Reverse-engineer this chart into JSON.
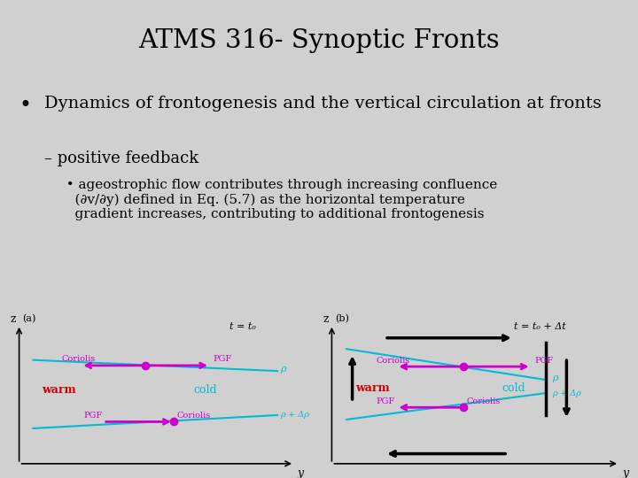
{
  "title": "ATMS 316- Synoptic Fronts",
  "bullet1": "Dynamics of frontogenesis and the vertical circulation at fronts",
  "sub1": "– positive feedback",
  "sub2": "  • ageostrophic flow contributes through increasing confluence\n    (∂v/∂y) defined in Eq. (5.7) as the horizontal temperature\n    gradient increases, contributing to additional frontogenesis",
  "bg_color": "#d0d0d0",
  "text_color": "#000000",
  "cyan_color": "#00bcd4",
  "magenta_color": "#cc00cc",
  "red_color": "#cc0000",
  "panel_a_label": "(a)",
  "panel_b_label": "(b)",
  "time_a": "t = t₀",
  "time_b": "t = t₀ + Δt",
  "warm_label": "warm",
  "cold_label": "cold",
  "rho_label": "ρ",
  "rho_dp_label": "ρ + Δρ",
  "pgf_label": "PGF",
  "coriolis_label": "Coriolis",
  "z_label": "z",
  "y_label": "y"
}
